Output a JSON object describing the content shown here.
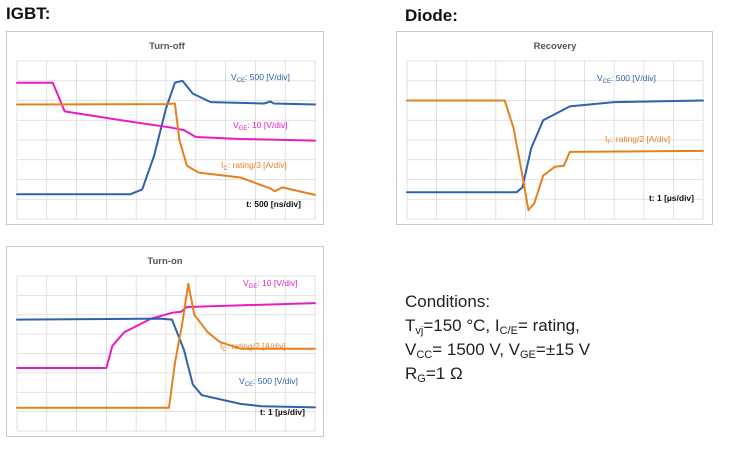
{
  "headings": {
    "igbt": "IGBT:",
    "diode": "Diode:"
  },
  "colors": {
    "vce": "#2E62AE",
    "ic": "#E6801F",
    "vge": "#E81CC4",
    "grid": "#d9d9d9"
  },
  "conditions": {
    "title": "Conditions:",
    "t_prefix": "T",
    "t_sub": "vj",
    "t_rest": "=150 °C, I",
    "i_sub": "C/E",
    "i_rest": "= rating,",
    "vcc_prefix": "V",
    "vcc_sub": "CC",
    "vcc_rest": "= 1500 V, V",
    "vge_sub": "GE",
    "vge_rest": "=±15 V",
    "rg_prefix": "R",
    "rg_sub": "G",
    "rg_rest": "=1 Ω"
  },
  "chart_data": [
    {
      "type": "line",
      "title": "Turn-off",
      "timebase": "t: 500 [ns/div]",
      "xlim": [
        0,
        10
      ],
      "ylim": [
        0,
        8
      ],
      "series": [
        {
          "name": "VCE",
          "label_main": "V",
          "label_sub": "CE",
          "label_rest": ": 500 [V/div]",
          "color": "#2E62AE",
          "points": [
            [
              0,
              1.25
            ],
            [
              3.8,
              1.25
            ],
            [
              4.2,
              1.5
            ],
            [
              4.6,
              3.2
            ],
            [
              5.0,
              5.6
            ],
            [
              5.3,
              6.9
            ],
            [
              5.55,
              7.0
            ],
            [
              5.9,
              6.35
            ],
            [
              6.5,
              5.92
            ],
            [
              8.3,
              5.85
            ],
            [
              8.5,
              5.95
            ],
            [
              8.62,
              5.85
            ],
            [
              10,
              5.8
            ]
          ]
        },
        {
          "name": "VGE",
          "label_main": "V",
          "label_sub": "GE",
          "label_rest": ": 10 [V/div]",
          "color": "#E81CC4",
          "points": [
            [
              0,
              6.9
            ],
            [
              1.2,
              6.9
            ],
            [
              1.6,
              5.45
            ],
            [
              3.5,
              5.0
            ],
            [
              5.1,
              4.65
            ],
            [
              5.6,
              4.5
            ],
            [
              6.0,
              4.15
            ],
            [
              7.5,
              4.05
            ],
            [
              10,
              3.97
            ]
          ]
        },
        {
          "name": "IC",
          "label_main": "I",
          "label_sub": "C",
          "label_rest": ": rating/3 [A/div]",
          "color": "#E6801F",
          "points": [
            [
              0,
              5.8
            ],
            [
              5.0,
              5.82
            ],
            [
              5.3,
              5.85
            ],
            [
              5.45,
              4.0
            ],
            [
              5.7,
              2.7
            ],
            [
              6.1,
              2.35
            ],
            [
              7.5,
              2.1
            ],
            [
              8.5,
              1.55
            ],
            [
              8.65,
              1.4
            ],
            [
              8.9,
              1.6
            ],
            [
              10,
              1.22
            ]
          ]
        }
      ]
    },
    {
      "type": "line",
      "title": "Recovery",
      "timebase": "t: 1 [µs/div]",
      "xlim": [
        0,
        10
      ],
      "ylim": [
        0,
        8
      ],
      "series": [
        {
          "name": "VCE",
          "label_main": "V",
          "label_sub": "CE",
          "label_rest": ": 500 [V/div]",
          "color": "#2E62AE",
          "points": [
            [
              0,
              1.35
            ],
            [
              3.7,
              1.35
            ],
            [
              3.9,
              1.6
            ],
            [
              4.2,
              3.6
            ],
            [
              4.6,
              5.0
            ],
            [
              5.5,
              5.7
            ],
            [
              7.0,
              5.92
            ],
            [
              10,
              6.0
            ]
          ]
        },
        {
          "name": "IF",
          "label_main": "I",
          "label_sub": "F",
          "label_rest": ": rating/2 [A/div]",
          "color": "#E6801F",
          "points": [
            [
              0,
              6.0
            ],
            [
              3.3,
              6.0
            ],
            [
              3.6,
              4.6
            ],
            [
              3.9,
              2.2
            ],
            [
              4.1,
              0.45
            ],
            [
              4.3,
              0.8
            ],
            [
              4.6,
              2.2
            ],
            [
              5.0,
              2.65
            ],
            [
              5.3,
              2.7
            ],
            [
              5.5,
              3.4
            ],
            [
              10,
              3.45
            ]
          ]
        }
      ]
    },
    {
      "type": "line",
      "title": "Turn-on",
      "timebase": "t: 1 [µs/div]",
      "xlim": [
        0,
        10
      ],
      "ylim": [
        0,
        8
      ],
      "series": [
        {
          "name": "VGE",
          "label_main": "V",
          "label_sub": "GE",
          "label_rest": ": 10 [V/div]",
          "color": "#E81CC4",
          "points": [
            [
              0,
              3.25
            ],
            [
              3.0,
              3.25
            ],
            [
              3.2,
              4.4
            ],
            [
              3.6,
              5.1
            ],
            [
              4.5,
              5.8
            ],
            [
              5.2,
              6.1
            ],
            [
              5.5,
              6.15
            ],
            [
              5.7,
              6.4
            ],
            [
              10,
              6.6
            ]
          ]
        },
        {
          "name": "VCE",
          "label_main": "V",
          "label_sub": "CE",
          "label_rest": ": 500 [V/div]",
          "color": "#2E62AE",
          "points": [
            [
              0,
              5.75
            ],
            [
              4.8,
              5.8
            ],
            [
              5.2,
              5.75
            ],
            [
              5.6,
              4.2
            ],
            [
              5.9,
              2.4
            ],
            [
              6.2,
              1.85
            ],
            [
              7.5,
              1.4
            ],
            [
              8.2,
              1.28
            ],
            [
              10,
              1.22
            ]
          ]
        },
        {
          "name": "IC",
          "label_main": "I",
          "label_sub": "C",
          "label_rest": ": rating/2 [A/div]",
          "color": "#E6801F",
          "points": [
            [
              0,
              1.2
            ],
            [
              5.1,
              1.2
            ],
            [
              5.3,
              3.5
            ],
            [
              5.55,
              5.6
            ],
            [
              5.75,
              7.6
            ],
            [
              5.95,
              6.0
            ],
            [
              6.4,
              5.1
            ],
            [
              6.8,
              4.6
            ],
            [
              7.5,
              4.25
            ],
            [
              10,
              4.25
            ]
          ]
        }
      ]
    }
  ]
}
